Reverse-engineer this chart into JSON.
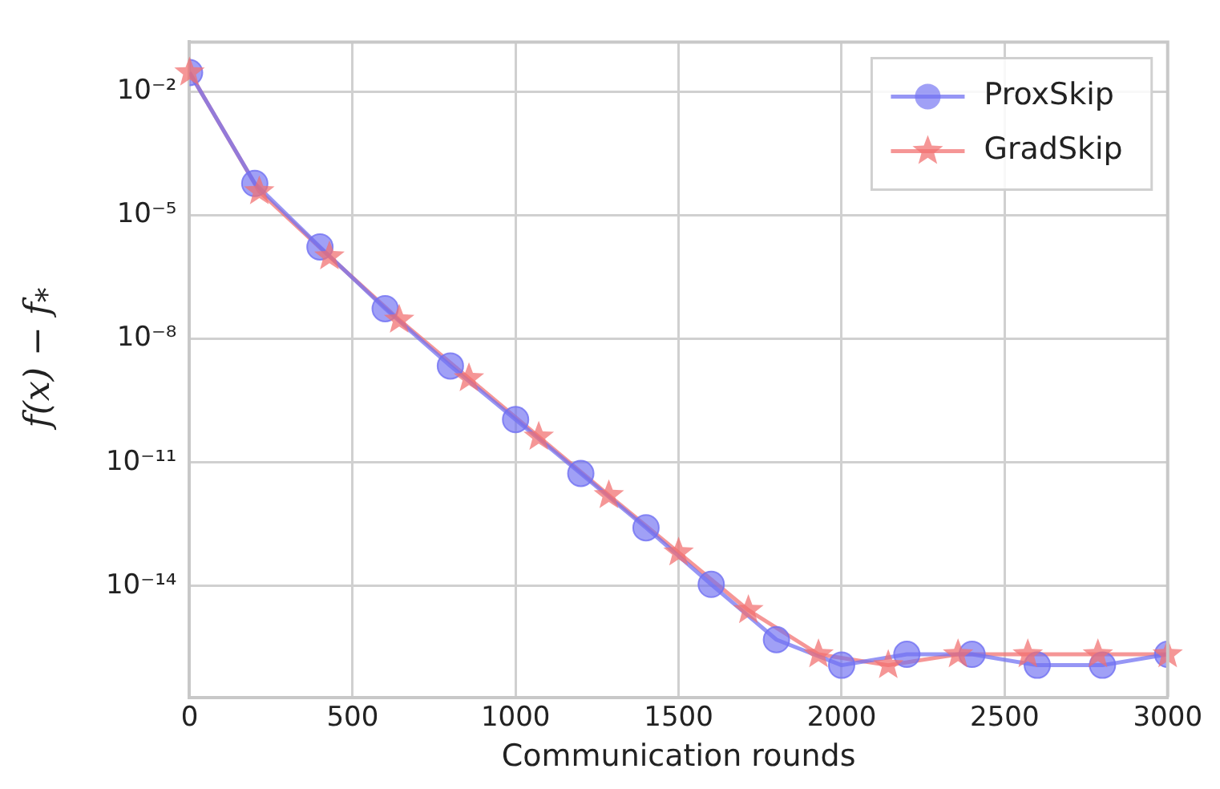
{
  "chart_data": {
    "type": "line",
    "xlabel": "Communication rounds",
    "ylabel": "f(x) − f$_{*}$",
    "log": "y",
    "grid": true,
    "legend": "top right",
    "xlim": [
      0,
      3000
    ],
    "xticks": [
      0,
      500,
      1000,
      1500,
      2000,
      2500,
      3000
    ],
    "ylim": [
      2e-17,
      0.16
    ],
    "yticks": [
      {
        "value": 0.01,
        "label": "10⁻²"
      },
      {
        "value": 1e-05,
        "label": "10⁻⁵"
      },
      {
        "value": 1e-08,
        "label": "10⁻⁸"
      },
      {
        "value": 1e-11,
        "label": "10⁻¹¹"
      },
      {
        "value": 1e-14,
        "label": "10⁻¹⁴"
      }
    ],
    "series": [
      {
        "name": "ProxSkip",
        "color": "#7070f2",
        "marker": "circle",
        "x": [
          0,
          200,
          400,
          600,
          800,
          1000,
          1200,
          1400,
          1600,
          1800,
          2000,
          2200,
          2400,
          2600,
          2800,
          3000
        ],
        "values": [
          0.029,
          5.9e-05,
          1.7e-06,
          5.4e-08,
          2.2e-09,
          1.1e-10,
          5.4e-12,
          2.6e-13,
          1.1e-14,
          5e-16,
          1.2e-16,
          2.2e-16,
          2.2e-16,
          1.2e-16,
          1.2e-16,
          2.2e-16
        ]
      },
      {
        "name": "GradSkip",
        "color": "#f27070",
        "marker": "star",
        "x": [
          0,
          214,
          429,
          643,
          857,
          1071,
          1286,
          1500,
          1714,
          1929,
          2143,
          2357,
          2571,
          2786,
          3000
        ],
        "values": [
          0.029,
          3.8e-05,
          1e-06,
          2.9e-08,
          1.1e-09,
          4.2e-11,
          1.6e-12,
          6.5e-14,
          2.6e-15,
          2.2e-16,
          1.2e-16,
          2.2e-16,
          2.2e-16,
          2.2e-16,
          2.2e-16
        ]
      }
    ]
  }
}
